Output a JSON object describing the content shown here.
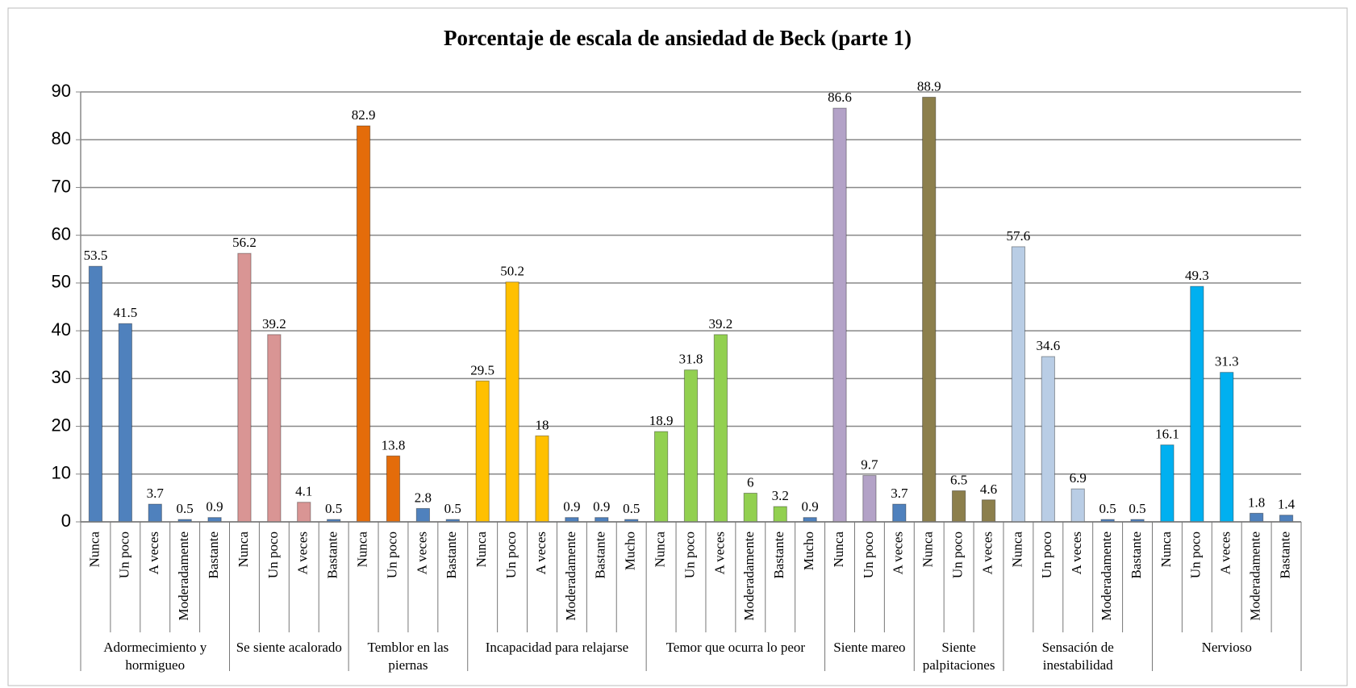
{
  "chart_data": {
    "type": "bar",
    "title": "Porcentaje de escala de ansiedad de Beck (parte 1)",
    "ylim": [
      0,
      90
    ],
    "yticks": [
      0,
      10,
      20,
      30,
      40,
      50,
      60,
      70,
      80,
      90
    ],
    "grid": true,
    "groups": [
      {
        "name": "Adormecimiento y hormigueo",
        "categories": [
          "Nunca",
          "Un poco",
          "A veces",
          "Moderadamente",
          "Bastante"
        ],
        "values": [
          53.5,
          41.5,
          3.7,
          0.5,
          0.9
        ],
        "colors": [
          "#4f81bd",
          "#4f81bd",
          "#4f81bd",
          "#4f81bd",
          "#4f81bd"
        ]
      },
      {
        "name": "Se siente acalorado",
        "categories": [
          "Nunca",
          "Un poco",
          "A veces",
          "Bastante"
        ],
        "values": [
          56.2,
          39.2,
          4.1,
          0.5
        ],
        "colors": [
          "#d99594",
          "#d99594",
          "#d99594",
          "#4f81bd"
        ]
      },
      {
        "name": "Temblor en las piernas",
        "categories": [
          "Nunca",
          "Un poco",
          "A veces",
          "Bastante"
        ],
        "values": [
          82.9,
          13.8,
          2.8,
          0.5
        ],
        "colors": [
          "#e46c0a",
          "#e46c0a",
          "#4f81bd",
          "#4f81bd"
        ]
      },
      {
        "name": "Incapacidad para relajarse",
        "categories": [
          "Nunca",
          "Un poco",
          "A veces",
          "Moderadamente",
          "Bastante",
          "Mucho"
        ],
        "values": [
          29.5,
          50.2,
          18,
          0.9,
          0.9,
          0.5
        ],
        "colors": [
          "#ffc000",
          "#ffc000",
          "#ffc000",
          "#4f81bd",
          "#4f81bd",
          "#4f81bd"
        ]
      },
      {
        "name": "Temor que ocurra lo peor",
        "categories": [
          "Nunca",
          "Un poco",
          "A veces",
          "Moderadamente",
          "Bastante",
          "Mucho"
        ],
        "values": [
          18.9,
          31.8,
          39.2,
          6,
          3.2,
          0.9
        ],
        "colors": [
          "#92d050",
          "#92d050",
          "#92d050",
          "#92d050",
          "#92d050",
          "#4f81bd"
        ]
      },
      {
        "name": "Siente mareo",
        "categories": [
          "Nunca",
          "Un poco",
          "A veces"
        ],
        "values": [
          86.6,
          9.7,
          3.7
        ],
        "colors": [
          "#b3a2c7",
          "#b3a2c7",
          "#4f81bd"
        ]
      },
      {
        "name": "Siente palpitaciones",
        "categories": [
          "Nunca",
          "Un poco",
          "A veces"
        ],
        "values": [
          88.9,
          6.5,
          4.6
        ],
        "colors": [
          "#8c7f4c",
          "#8c7f4c",
          "#8c7f4c"
        ]
      },
      {
        "name": "Sensación de inestabilidad",
        "categories": [
          "Nunca",
          "Un poco",
          "A veces",
          "Moderadamente",
          "Bastante"
        ],
        "values": [
          57.6,
          34.6,
          6.9,
          0.5,
          0.5
        ],
        "colors": [
          "#b9cde5",
          "#b9cde5",
          "#b9cde5",
          "#4f81bd",
          "#4f81bd"
        ]
      },
      {
        "name": "Nervioso",
        "categories": [
          "Nunca",
          "Un poco",
          "A veces",
          "Moderadamente",
          "Bastante"
        ],
        "values": [
          16.1,
          49.3,
          31.3,
          1.8,
          1.4
        ],
        "colors": [
          "#00b0f0",
          "#00b0f0",
          "#00b0f0",
          "#4f81bd",
          "#4f81bd"
        ]
      }
    ]
  }
}
